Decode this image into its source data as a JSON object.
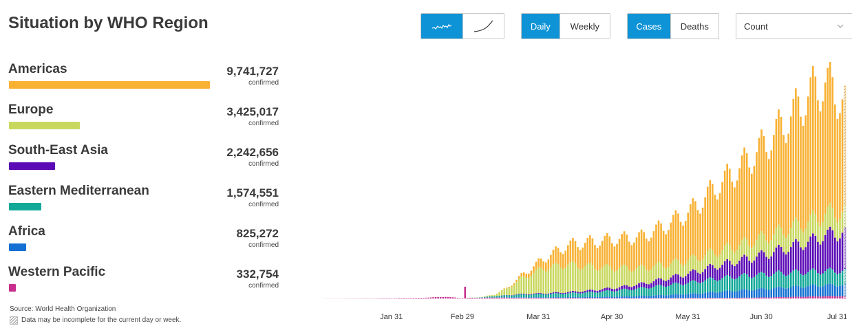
{
  "title": "Situation by WHO Region",
  "controls": {
    "chart_style": [
      {
        "name": "daily-bars-toggle",
        "icon": "jagged-line-icon",
        "active": true
      },
      {
        "name": "cumulative-curve-toggle",
        "icon": "rising-curve-icon",
        "active": false
      }
    ],
    "period": [
      "Daily",
      "Weekly"
    ],
    "metric": [
      "Cases",
      "Deaths"
    ],
    "measure_selected": "Count"
  },
  "regions": [
    {
      "name": "Americas",
      "count": "9,741,727",
      "unit": "confirmed",
      "color": "#F8B133",
      "value": 9741727
    },
    {
      "name": "Europe",
      "count": "3,425,017",
      "unit": "confirmed",
      "color": "#C8D85F",
      "value": 3425017
    },
    {
      "name": "South-East Asia",
      "count": "2,242,656",
      "unit": "confirmed",
      "color": "#5B0AB6",
      "value": 2242656
    },
    {
      "name": "Eastern Mediterranean",
      "count": "1,574,551",
      "unit": "confirmed",
      "color": "#13A999",
      "value": 1574551
    },
    {
      "name": "Africa",
      "count": "825,272",
      "unit": "confirmed",
      "color": "#1470D3",
      "value": 825272
    },
    {
      "name": "Western Pacific",
      "count": "332,754",
      "unit": "confirmed",
      "color": "#C72E8E",
      "value": 332754
    }
  ],
  "source": "Source: World Health Organization",
  "note": "Data may be incomplete for the current day or week.",
  "chart_data": {
    "type": "bar",
    "stacked": true,
    "x_ticks": [
      "Jan 31",
      "Feb 29",
      "Mar 31",
      "Apr 30",
      "May 31",
      "Jun 30",
      "Jul 31"
    ],
    "start_date": "2020-01-03",
    "end_date": "2020-08-03",
    "series_order": [
      "Western Pacific",
      "Africa",
      "Eastern Mediterranean",
      "South-East Asia",
      "Europe",
      "Americas"
    ],
    "anchors": {
      "days": [
        0,
        20,
        40,
        50,
        56,
        60,
        65,
        70,
        75,
        80,
        90,
        100,
        110,
        120,
        130,
        140,
        150,
        160,
        170,
        180,
        190,
        200,
        205,
        213
      ],
      "Western Pacific": [
        100,
        300,
        800,
        2200,
        600,
        800,
        1000,
        1200,
        1100,
        1000,
        900,
        800,
        700,
        600,
        500,
        600,
        700,
        800,
        900,
        1300,
        1900,
        2600,
        3000,
        3200
      ],
      "Africa": [
        0,
        0,
        0,
        0,
        0,
        20,
        100,
        300,
        400,
        500,
        700,
        900,
        1300,
        1800,
        2600,
        3800,
        5200,
        7300,
        9500,
        11000,
        12500,
        13500,
        14000,
        14200
      ],
      "Eastern Mediterranean": [
        0,
        0,
        0,
        0,
        0,
        0,
        500,
        1500,
        2500,
        3500,
        4000,
        5000,
        6000,
        8000,
        10000,
        12500,
        14500,
        17000,
        18000,
        18500,
        18500,
        18200,
        18000,
        18000
      ],
      "South-East Asia": [
        0,
        0,
        0,
        0,
        0,
        0,
        0,
        100,
        300,
        600,
        1000,
        1500,
        2500,
        3500,
        5500,
        8500,
        12000,
        16000,
        20000,
        25000,
        32000,
        40000,
        46000,
        49000
      ],
      "Europe": [
        0,
        0,
        0,
        0,
        0,
        100,
        300,
        2000,
        8000,
        18000,
        32000,
        35000,
        30000,
        25000,
        20000,
        18000,
        17000,
        18000,
        20000,
        22000,
        24000,
        26000,
        27000,
        27000
      ],
      "Americas": [
        0,
        0,
        0,
        0,
        0,
        0,
        0,
        100,
        800,
        3000,
        12000,
        25000,
        32000,
        37000,
        40000,
        50000,
        62000,
        82000,
        98000,
        118000,
        140000,
        165000,
        168000,
        140000
      ]
    },
    "ylim": [
      0,
      290000
    ]
  }
}
